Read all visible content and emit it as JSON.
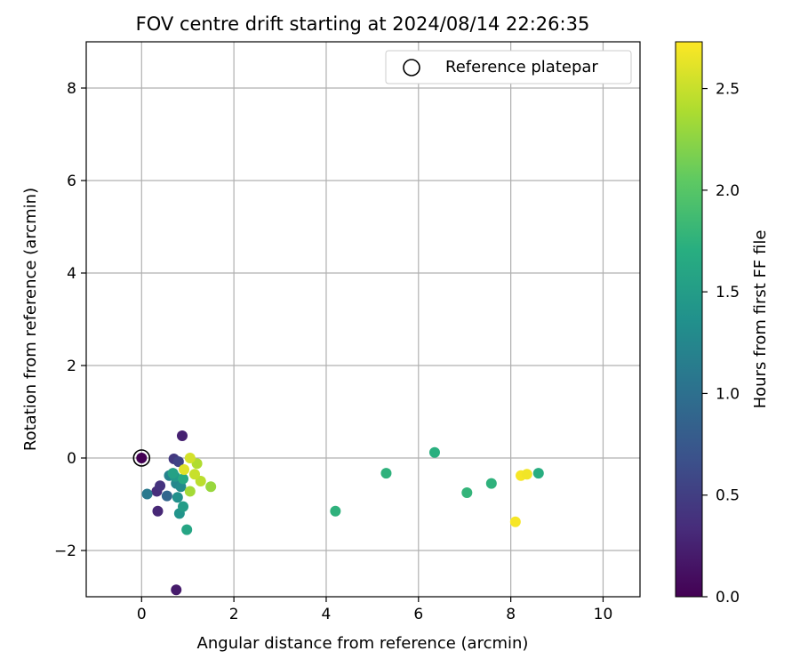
{
  "chart_data": {
    "type": "scatter",
    "title": "FOV centre drift starting at 2024/08/14 22:26:35",
    "xlabel": "Angular distance from reference (arcmin)",
    "ylabel": "Rotation from reference (arcmin)",
    "xlim": [
      -1.2,
      10.8
    ],
    "ylim": [
      -3.0,
      9.0
    ],
    "xticks": [
      0,
      2,
      4,
      6,
      8,
      10
    ],
    "yticks": [
      -2,
      0,
      2,
      4,
      6,
      8
    ],
    "xtick_labels": [
      "0",
      "2",
      "4",
      "6",
      "8",
      "10"
    ],
    "ytick_labels": [
      "−2",
      "0",
      "2",
      "4",
      "6",
      "8"
    ],
    "grid": true,
    "legend": {
      "position": "top-right",
      "entries": [
        "Reference platepar"
      ]
    },
    "reference_point": {
      "x": 0,
      "y": 0
    },
    "colormap": "viridis",
    "colorbar": {
      "label": "Hours from first FF file",
      "range": [
        0,
        2.73
      ],
      "ticks": [
        0.0,
        0.5,
        1.0,
        1.5,
        2.0,
        2.5
      ],
      "tick_labels": [
        "0.0",
        "0.5",
        "1.0",
        "1.5",
        "2.0",
        "2.5"
      ]
    },
    "points": [
      {
        "x": 0.0,
        "y": 0.0,
        "c": 0.0
      },
      {
        "x": 0.88,
        "y": 0.48,
        "c": 0.25
      },
      {
        "x": 0.75,
        "y": -2.85,
        "c": 0.2
      },
      {
        "x": 0.35,
        "y": -1.15,
        "c": 0.3
      },
      {
        "x": 0.33,
        "y": -0.72,
        "c": 0.35
      },
      {
        "x": 0.4,
        "y": -0.6,
        "c": 0.4
      },
      {
        "x": 0.7,
        "y": -0.02,
        "c": 0.45
      },
      {
        "x": 0.8,
        "y": -0.08,
        "c": 0.55
      },
      {
        "x": 0.55,
        "y": -0.82,
        "c": 0.9
      },
      {
        "x": 0.12,
        "y": -0.78,
        "c": 1.1
      },
      {
        "x": 0.6,
        "y": -0.38,
        "c": 1.2
      },
      {
        "x": 0.75,
        "y": -0.55,
        "c": 1.25
      },
      {
        "x": 0.85,
        "y": -0.62,
        "c": 1.3
      },
      {
        "x": 0.78,
        "y": -0.85,
        "c": 1.35
      },
      {
        "x": 0.82,
        "y": -1.2,
        "c": 1.4
      },
      {
        "x": 0.9,
        "y": -1.05,
        "c": 1.5
      },
      {
        "x": 0.72,
        "y": -0.4,
        "c": 1.45
      },
      {
        "x": 0.68,
        "y": -0.33,
        "c": 1.55
      },
      {
        "x": 0.98,
        "y": -1.55,
        "c": 1.6
      },
      {
        "x": 0.9,
        "y": -0.45,
        "c": 1.65
      },
      {
        "x": 4.2,
        "y": -1.15,
        "c": 1.75
      },
      {
        "x": 5.3,
        "y": -0.33,
        "c": 1.75
      },
      {
        "x": 6.35,
        "y": 0.12,
        "c": 1.72
      },
      {
        "x": 7.05,
        "y": -0.75,
        "c": 1.78
      },
      {
        "x": 7.58,
        "y": -0.55,
        "c": 1.75
      },
      {
        "x": 8.6,
        "y": -0.33,
        "c": 1.7
      },
      {
        "x": 1.28,
        "y": -0.5,
        "c": 2.45
      },
      {
        "x": 1.5,
        "y": -0.62,
        "c": 2.3
      },
      {
        "x": 1.05,
        "y": -0.72,
        "c": 2.35
      },
      {
        "x": 1.2,
        "y": -0.12,
        "c": 2.4
      },
      {
        "x": 1.15,
        "y": -0.35,
        "c": 2.5
      },
      {
        "x": 0.92,
        "y": -0.25,
        "c": 2.6
      },
      {
        "x": 1.05,
        "y": 0.0,
        "c": 2.55
      },
      {
        "x": 8.1,
        "y": -1.38,
        "c": 2.7
      },
      {
        "x": 8.22,
        "y": -0.38,
        "c": 2.7
      },
      {
        "x": 8.35,
        "y": -0.35,
        "c": 2.68
      }
    ]
  }
}
